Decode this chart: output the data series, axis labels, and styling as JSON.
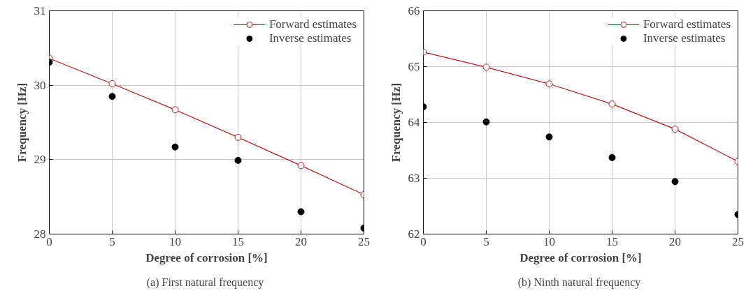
{
  "chart_data": [
    {
      "type": "line",
      "xlabel": "Degree of corrosion [%]",
      "ylabel": "Frequency [Hz]",
      "annotations": [
        "(a)  First natural frequency"
      ],
      "x": [
        0,
        5,
        10,
        15,
        20,
        25
      ],
      "xlim": [
        0,
        25
      ],
      "xticks": [
        0,
        5,
        10,
        15,
        20,
        25
      ],
      "ylim": [
        28,
        31
      ],
      "yticks": [
        28,
        29,
        30,
        31
      ],
      "grid": true,
      "legend": "top right",
      "marker": "circle",
      "series": [
        {
          "name": "Forward estimates",
          "color": "#b01c1c",
          "values": [
            30.36,
            30.02,
            29.67,
            29.3,
            28.92,
            28.53
          ]
        },
        {
          "name": "Inverse estimates",
          "type": "scatter",
          "color": "#000000",
          "values": [
            30.31,
            29.85,
            29.17,
            28.99,
            28.3,
            28.08
          ]
        }
      ]
    },
    {
      "type": "line",
      "xlabel": "Degree of corrosion [%]",
      "ylabel": "Frequency [Hz]",
      "annotations": [
        "(b)  Ninth natural frequency"
      ],
      "x": [
        0,
        5,
        10,
        15,
        20,
        25
      ],
      "xlim": [
        0,
        25
      ],
      "xticks": [
        0,
        5,
        10,
        15,
        20,
        25
      ],
      "ylim": [
        62,
        66
      ],
      "yticks": [
        62,
        63,
        64,
        65,
        66
      ],
      "grid": true,
      "legend": "top right",
      "marker": "circle",
      "series": [
        {
          "name": "Forward estimates",
          "color": "#b01c1c",
          "values": [
            65.26,
            64.99,
            64.69,
            64.33,
            63.88,
            63.3
          ]
        },
        {
          "name": "Inverse estimates",
          "type": "scatter",
          "color": "#000000",
          "values": [
            64.28,
            64.01,
            63.74,
            63.37,
            62.94,
            62.35
          ]
        }
      ]
    }
  ]
}
